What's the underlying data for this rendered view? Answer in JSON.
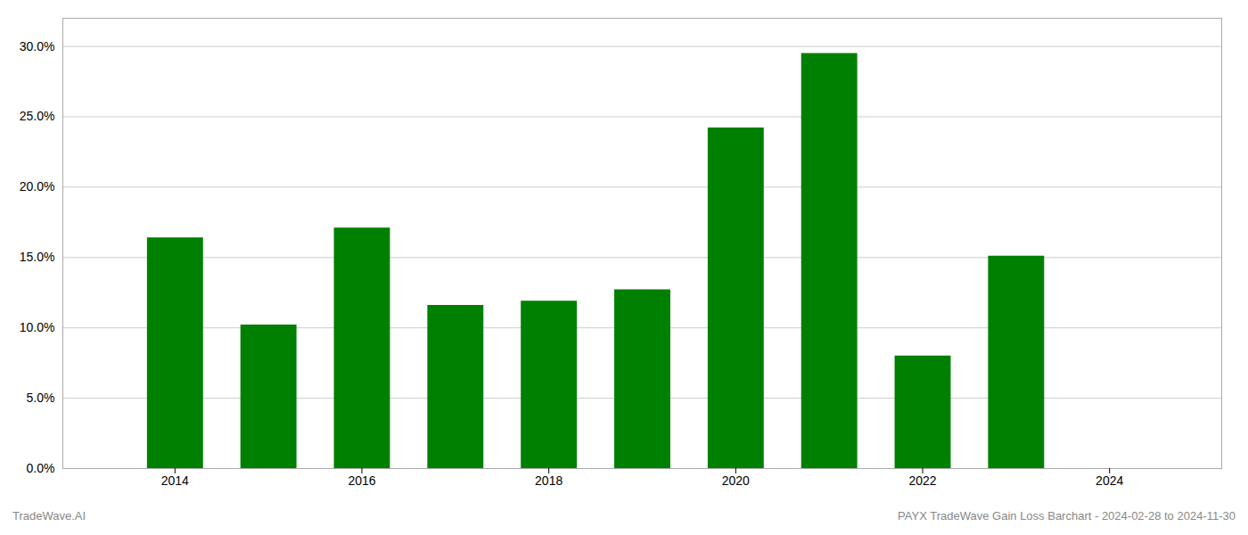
{
  "chart_data": {
    "type": "bar",
    "x": [
      2014,
      2015,
      2016,
      2017,
      2018,
      2019,
      2020,
      2021,
      2022,
      2023
    ],
    "values": [
      0.164,
      0.102,
      0.171,
      0.116,
      0.119,
      0.127,
      0.242,
      0.295,
      0.08,
      0.151
    ],
    "color": "#008000",
    "xlim": [
      2012.8,
      2025.2
    ],
    "xticks": [
      2014,
      2016,
      2018,
      2020,
      2022,
      2024
    ],
    "ylim": [
      0,
      0.32
    ],
    "yticks": [
      {
        "value": 0.0,
        "label": "0.0%"
      },
      {
        "value": 0.05,
        "label": "5.0%"
      },
      {
        "value": 0.1,
        "label": "10.0%"
      },
      {
        "value": 0.15,
        "label": "15.0%"
      },
      {
        "value": 0.2,
        "label": "20.0%"
      },
      {
        "value": 0.25,
        "label": "25.0%"
      },
      {
        "value": 0.3,
        "label": "30.0%"
      }
    ],
    "grid": true,
    "annotations": [
      "TradeWave.AI",
      "PAYX TradeWave Gain Loss Barchart - 2024-02-28 to 2024-11-30"
    ]
  }
}
